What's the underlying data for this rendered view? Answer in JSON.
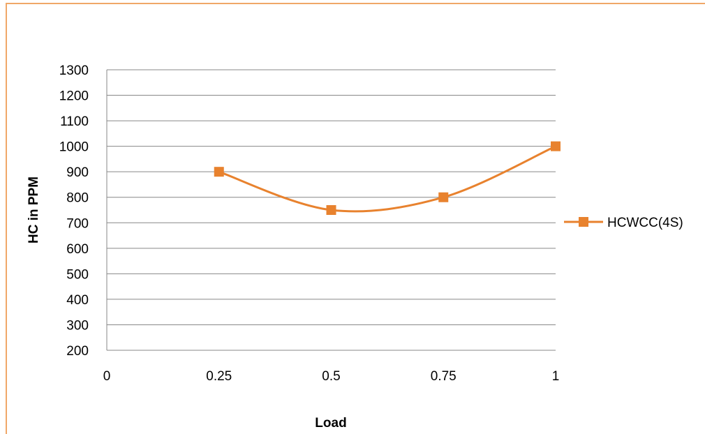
{
  "chart_data": {
    "type": "scatter",
    "xlabel": "Load",
    "ylabel": "HC in PPM",
    "xlim": [
      0,
      1
    ],
    "ylim": [
      200,
      1300
    ],
    "x_ticks": [
      "0",
      "0.25",
      "0.5",
      "0.75",
      "1"
    ],
    "y_ticks": [
      "200",
      "300",
      "400",
      "500",
      "600",
      "700",
      "800",
      "900",
      "1000",
      "1100",
      "1200",
      "1300"
    ],
    "grid": "horizontal",
    "legend_position": "right",
    "smoothed": true,
    "series": [
      {
        "name": "HCWCC(4S)",
        "color": "#e8822e",
        "marker": "square",
        "x": [
          0.25,
          0.5,
          0.75,
          1
        ],
        "y": [
          900,
          750,
          800,
          1000
        ]
      }
    ]
  }
}
